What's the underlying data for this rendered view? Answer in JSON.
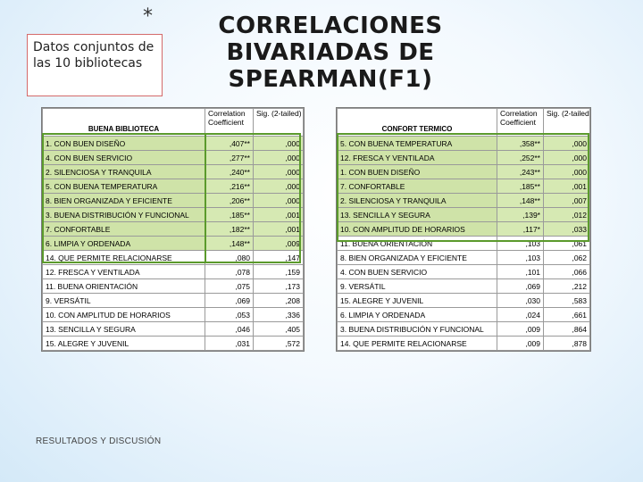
{
  "slide": {
    "asterisk": "*",
    "info_box": "Datos conjuntos de las 10 bibliotecas",
    "title": "CORRELACIONES BIVARIADAS DE SPEARMAN(F1)",
    "footer": "RESULTADOS Y DISCUSIÓN"
  },
  "left_table": {
    "header": {
      "label": "BUENA BIBLIOTECA",
      "coef": "Correlation Coefficient",
      "sig": "Sig. (2-tailed)"
    },
    "rows": [
      {
        "label": "1. CON BUEN DISEÑO",
        "coef": ",407**",
        "sig": ",000"
      },
      {
        "label": "4. CON BUEN SERVICIO",
        "coef": ",277**",
        "sig": ",000"
      },
      {
        "label": "2. SILENCIOSA Y TRANQUILA",
        "coef": ",240**",
        "sig": ",000"
      },
      {
        "label": "5. CON BUENA TEMPERATURA",
        "coef": ",216**",
        "sig": ",000"
      },
      {
        "label": "8. BIEN ORGANIZADA Y EFICIENTE",
        "coef": ",206**",
        "sig": ",000"
      },
      {
        "label": "3. BUENA DISTRIBUCIÓN Y FUNCIONAL",
        "coef": ",185**",
        "sig": ",001"
      },
      {
        "label": "7. CONFORTABLE",
        "coef": ",182**",
        "sig": ",001"
      },
      {
        "label": "6. LIMPIA Y ORDENADA",
        "coef": ",148**",
        "sig": ",009"
      },
      {
        "label": "14. QUE PERMITE RELACIONARSE",
        "coef": ",080",
        "sig": ",147"
      },
      {
        "label": "12. FRESCA Y VENTILADA",
        "coef": ",078",
        "sig": ",159"
      },
      {
        "label": "11. BUENA ORIENTACIÓN",
        "coef": ",075",
        "sig": ",173"
      },
      {
        "label": "9. VERSÁTIL",
        "coef": ",069",
        "sig": ",208"
      },
      {
        "label": "10. CON AMPLITUD DE HORARIOS",
        "coef": ",053",
        "sig": ",336"
      },
      {
        "label": "13. SENCILLA Y SEGURA",
        "coef": ",046",
        "sig": ",405"
      },
      {
        "label": "15. ALEGRE Y JUVENIL",
        "coef": ",031",
        "sig": ",572"
      }
    ]
  },
  "right_table": {
    "header": {
      "label": "CONFORT TERMICO",
      "coef": "Correlation Coefficient",
      "sig": "Sig. (2-tailed)"
    },
    "rows": [
      {
        "label": "5. CON BUENA TEMPERATURA",
        "coef": ",358**",
        "sig": ",000"
      },
      {
        "label": "12. FRESCA Y VENTILADA",
        "coef": ",252**",
        "sig": ",000"
      },
      {
        "label": "1. CON BUEN DISEÑO",
        "coef": ",243**",
        "sig": ",000"
      },
      {
        "label": "7. CONFORTABLE",
        "coef": ",185**",
        "sig": ",001"
      },
      {
        "label": "2. SILENCIOSA Y TRANQUILA",
        "coef": ",148**",
        "sig": ",007"
      },
      {
        "label": "13. SENCILLA Y SEGURA",
        "coef": ",139*",
        "sig": ",012"
      },
      {
        "label": "10. CON AMPLITUD DE HORARIOS",
        "coef": ",117*",
        "sig": ",033"
      },
      {
        "label": "11. BUENA ORIENTACIÓN",
        "coef": ",103",
        "sig": ",061"
      },
      {
        "label": "8. BIEN ORGANIZADA Y EFICIENTE",
        "coef": ",103",
        "sig": ",062"
      },
      {
        "label": "4. CON BUEN SERVICIO",
        "coef": ",101",
        "sig": ",066"
      },
      {
        "label": "9. VERSÁTIL",
        "coef": ",069",
        "sig": ",212"
      },
      {
        "label": "15. ALEGRE Y JUVENIL",
        "coef": ",030",
        "sig": ",583"
      },
      {
        "label": "6. LIMPIA Y ORDENADA",
        "coef": ",024",
        "sig": ",661"
      },
      {
        "label": "3. BUENA DISTRIBUCIÓN Y FUNCIONAL",
        "coef": ",009",
        "sig": ",864"
      },
      {
        "label": "14. QUE PERMITE RELACIONARSE",
        "coef": ",009",
        "sig": ",878"
      }
    ]
  }
}
